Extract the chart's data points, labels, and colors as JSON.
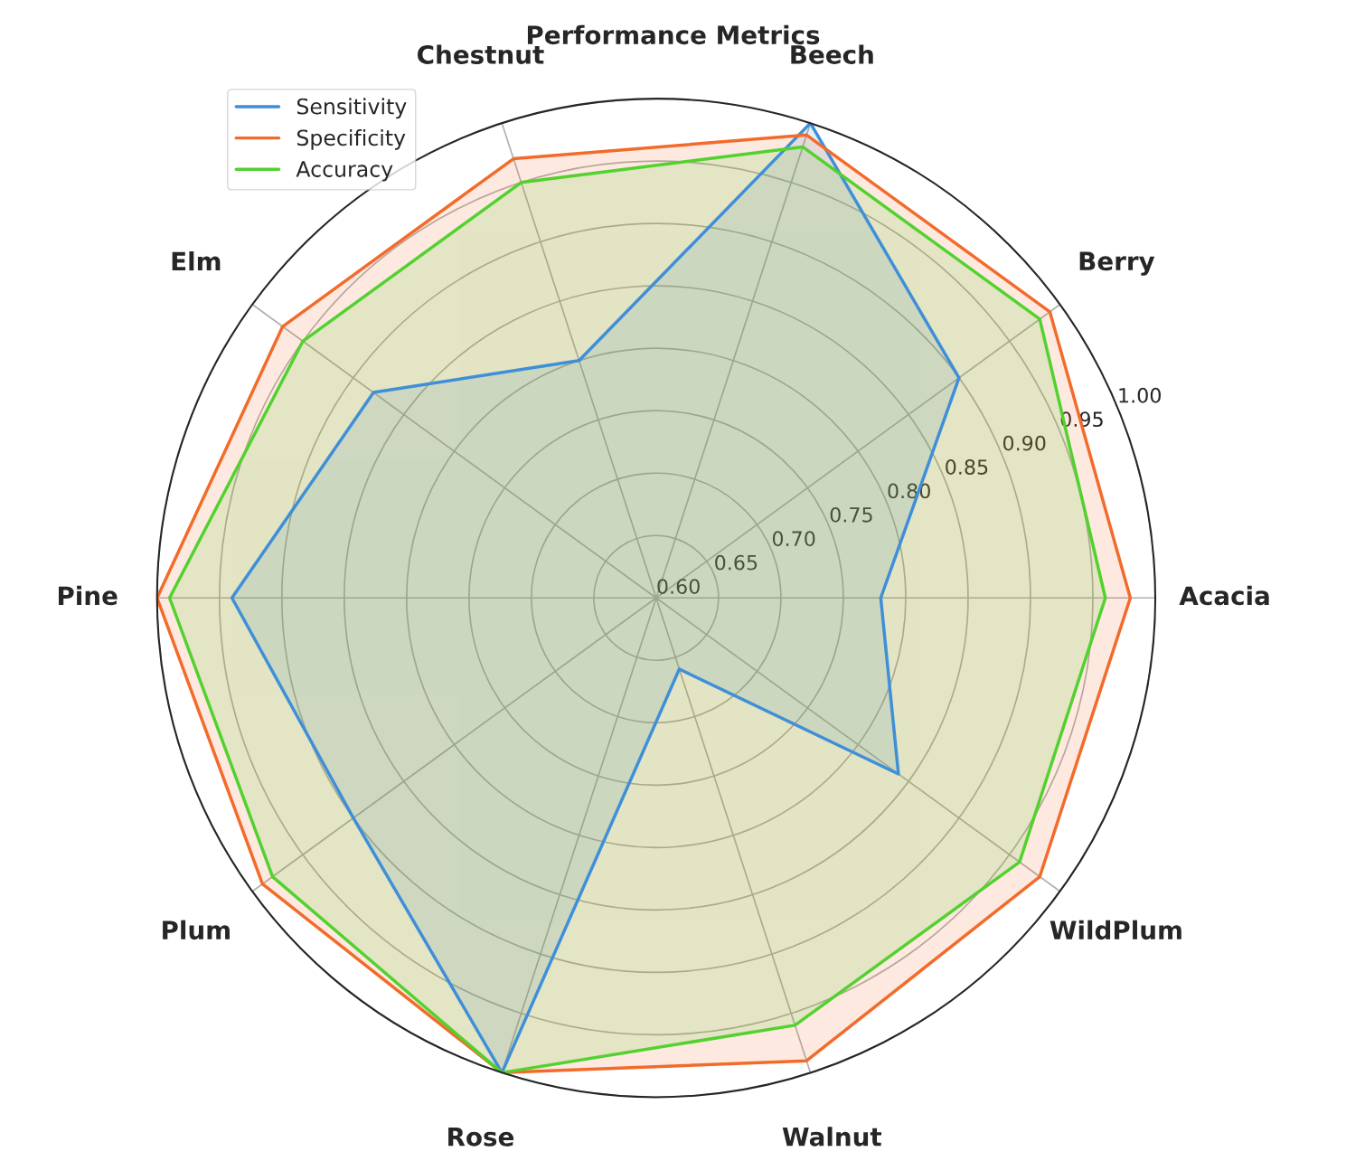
{
  "chart_data": {
    "type": "radar",
    "title": "Performance Metrics",
    "categories": [
      "Beech",
      "Berry",
      "Acacia",
      "WildPlum",
      "Walnut",
      "Rose",
      "Plum",
      "Pine",
      "Elm",
      "Chestnut"
    ],
    "series": [
      {
        "name": "Sensitivity",
        "color": "#3f8fd8",
        "values": [
          1.0,
          0.9,
          0.78,
          0.84,
          0.66,
          1.0,
          0.9,
          0.94,
          0.88,
          0.8
        ]
      },
      {
        "name": "Specificity",
        "color": "#f26b2a",
        "values": [
          0.99,
          0.99,
          0.98,
          0.98,
          0.99,
          1.0,
          0.99,
          1.0,
          0.97,
          0.97
        ]
      },
      {
        "name": "Accuracy",
        "color": "#52d12f",
        "values": [
          0.98,
          0.98,
          0.96,
          0.96,
          0.96,
          1.0,
          0.98,
          0.99,
          0.95,
          0.95
        ]
      }
    ],
    "ylim": [
      0.6,
      1.0
    ],
    "yticks": [
      {
        "value": 0.6,
        "label": "0.60"
      },
      0.65,
      {
        "value": 0.7,
        "label": "0.70"
      },
      0.75,
      {
        "value": 0.8,
        "label": "0.80"
      },
      0.85,
      {
        "value": 0.9,
        "label": "0.90"
      },
      0.95,
      {
        "value": 1.0,
        "label": "1.00"
      }
    ],
    "grid": true,
    "legend": "top left"
  }
}
